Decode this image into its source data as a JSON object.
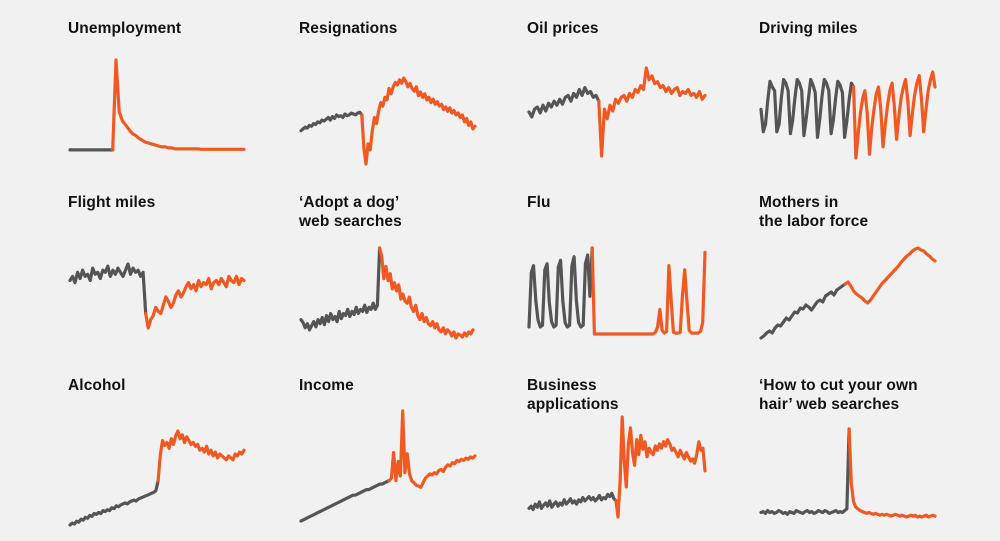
{
  "colors": {
    "before": "#555555",
    "after": "#f05a22",
    "background": "#f1f1f1"
  },
  "chart_data": [
    {
      "type": "line",
      "title": "Unemployment",
      "split_index": 13,
      "values": [
        3.9,
        3.9,
        3.9,
        3.9,
        3.9,
        3.9,
        3.9,
        3.9,
        3.9,
        3.9,
        3.9,
        3.9,
        3.9,
        3.8,
        98,
        44,
        34,
        30,
        25,
        21,
        19,
        16,
        14,
        12,
        11,
        10,
        9,
        8,
        7,
        7,
        6,
        6,
        5,
        5,
        5,
        5,
        5,
        5,
        5,
        5,
        4.5,
        4.5,
        4.5,
        4.5,
        4.5,
        4.5,
        4.5,
        4.5,
        4.5,
        4.5,
        4.5,
        4.5,
        4.5,
        4.5
      ]
    },
    {
      "type": "line",
      "title": "Resignations",
      "split_index": 29,
      "values": [
        40,
        42,
        44,
        43,
        46,
        45,
        48,
        47,
        50,
        49,
        52,
        51,
        53,
        55,
        52,
        56,
        54,
        58,
        56,
        57,
        55,
        59,
        57,
        58,
        60,
        59,
        58,
        60,
        61,
        58,
        20,
        2,
        25,
        18,
        40,
        55,
        48,
        62,
        72,
        68,
        78,
        75,
        88,
        82,
        90,
        95,
        92,
        98,
        94,
        100,
        96,
        90,
        94,
        88,
        85,
        90,
        80,
        84,
        78,
        82,
        75,
        78,
        72,
        76,
        70,
        73,
        68,
        70,
        64,
        67,
        62,
        66,
        60,
        63,
        58,
        60,
        55,
        58,
        50,
        54,
        46,
        50,
        42,
        45
      ]
    },
    {
      "type": "line",
      "title": "Oil prices",
      "split_index": 25,
      "values": [
        55,
        50,
        58,
        60,
        54,
        62,
        56,
        64,
        60,
        66,
        62,
        68,
        63,
        70,
        72,
        66,
        74,
        70,
        78,
        72,
        80,
        74,
        76,
        70,
        72,
        66,
        10,
        58,
        48,
        62,
        56,
        68,
        64,
        70,
        72,
        66,
        74,
        70,
        78,
        75,
        82,
        78,
        100,
        88,
        92,
        84,
        86,
        80,
        82,
        76,
        80,
        74,
        78,
        80,
        72,
        76,
        74,
        78,
        72,
        74,
        70,
        76,
        68,
        72
      ]
    },
    {
      "type": "line",
      "title": "Driving miles",
      "split_index": 41,
      "values": [
        60,
        48,
        52,
        65,
        75,
        72,
        70,
        48,
        52,
        66,
        76,
        74,
        70,
        47,
        54,
        66,
        76,
        74,
        70,
        46,
        55,
        66,
        76,
        73,
        69,
        45,
        55,
        67,
        76,
        74,
        70,
        47,
        54,
        66,
        75,
        73,
        69,
        45,
        54,
        65,
        74,
        72,
        34,
        47,
        58,
        66,
        70,
        58,
        36,
        50,
        60,
        68,
        72,
        60,
        40,
        52,
        62,
        70,
        74,
        62,
        44,
        56,
        66,
        72,
        76,
        64,
        46,
        58,
        68,
        74,
        78,
        66,
        48,
        60,
        70,
        76,
        80,
        72
      ]
    },
    {
      "type": "line",
      "title": "Flight miles",
      "split_index": 30,
      "values": [
        62,
        66,
        60,
        70,
        64,
        72,
        66,
        68,
        62,
        74,
        68,
        70,
        64,
        72,
        70,
        76,
        66,
        72,
        68,
        74,
        70,
        66,
        72,
        78,
        68,
        74,
        70,
        72,
        66,
        70,
        30,
        16,
        24,
        28,
        36,
        32,
        30,
        38,
        46,
        42,
        36,
        40,
        48,
        52,
        46,
        50,
        56,
        60,
        54,
        58,
        52,
        62,
        56,
        60,
        58,
        64,
        54,
        60,
        62,
        58,
        64,
        60,
        56,
        66,
        62,
        60,
        66,
        58,
        64,
        62
      ]
    },
    {
      "type": "line",
      "title": "‘Adopt a dog’\nweb searches",
      "split_index": 37,
      "values": [
        30,
        27,
        22,
        26,
        20,
        24,
        28,
        23,
        30,
        26,
        32,
        25,
        34,
        28,
        36,
        30,
        33,
        28,
        38,
        31,
        36,
        34,
        40,
        33,
        38,
        35,
        42,
        36,
        40,
        38,
        44,
        37,
        42,
        40,
        46,
        40,
        44,
        100,
        92,
        70,
        82,
        68,
        75,
        60,
        66,
        58,
        64,
        50,
        55,
        48,
        46,
        52,
        42,
        38,
        44,
        34,
        30,
        36,
        28,
        32,
        26,
        24,
        28,
        22,
        26,
        20,
        18,
        22,
        16,
        20,
        18,
        14,
        18,
        12,
        16,
        15,
        13,
        17,
        14,
        18,
        16,
        20
      ]
    },
    {
      "type": "line",
      "title": "Flu",
      "split_index": 28,
      "values": [
        10,
        72,
        80,
        40,
        18,
        10,
        12,
        75,
        82,
        38,
        16,
        10,
        12,
        78,
        86,
        40,
        15,
        10,
        12,
        80,
        90,
        40,
        15,
        10,
        12,
        82,
        92,
        45,
        100,
        2,
        2,
        2,
        2,
        2,
        2,
        2,
        2,
        2,
        2,
        2,
        2,
        2,
        2,
        2,
        2,
        2,
        2,
        2,
        2,
        2,
        2,
        2,
        2,
        2,
        2,
        2,
        4,
        10,
        30,
        6,
        3,
        5,
        80,
        40,
        4,
        3,
        3,
        4,
        45,
        75,
        40,
        6,
        3,
        3,
        3,
        3,
        5,
        15,
        95
      ]
    },
    {
      "type": "line",
      "title": "Mothers in\nthe labor force",
      "split_index": 30,
      "values": [
        10,
        12,
        15,
        17,
        15,
        20,
        23,
        22,
        26,
        30,
        28,
        32,
        36,
        35,
        40,
        39,
        43,
        41,
        38,
        42,
        46,
        48,
        46,
        52,
        54,
        56,
        53,
        58,
        60,
        62,
        64,
        66,
        62,
        57,
        54,
        52,
        50,
        47,
        45,
        48,
        52,
        56,
        60,
        64,
        67,
        70,
        73,
        76,
        79,
        82,
        86,
        89,
        92,
        94,
        97,
        99,
        100,
        98,
        97,
        94,
        92,
        89,
        87
      ]
    },
    {
      "type": "line",
      "title": "Alcohol",
      "split_index": 40,
      "values": [
        2,
        4,
        3,
        6,
        5,
        8,
        7,
        10,
        9,
        12,
        11,
        14,
        13,
        15,
        14,
        17,
        16,
        18,
        17,
        20,
        19,
        22,
        21,
        23,
        24,
        25,
        24,
        26,
        27,
        28,
        27,
        29,
        30,
        31,
        32,
        33,
        34,
        35,
        36,
        38,
        48,
        75,
        90,
        85,
        88,
        82,
        92,
        86,
        95,
        100,
        92,
        96,
        88,
        94,
        90,
        86,
        88,
        84,
        86,
        80,
        82,
        78,
        84,
        76,
        80,
        74,
        78,
        72,
        76,
        74,
        72,
        70,
        74,
        72,
        70,
        76,
        74,
        78,
        76,
        80
      ]
    },
    {
      "type": "line",
      "title": "Income",
      "split_index": 39,
      "values": [
        2,
        3,
        4,
        5,
        6,
        7,
        8,
        9,
        10,
        11,
        12,
        13,
        14,
        15,
        16,
        17,
        18,
        19,
        20,
        21,
        22,
        23,
        24,
        25,
        25,
        26,
        27,
        28,
        29,
        30,
        30,
        31,
        32,
        33,
        34,
        35,
        35,
        36,
        37,
        38,
        40,
        63,
        38,
        55,
        42,
        100,
        45,
        62,
        44,
        38,
        36,
        34,
        33,
        32,
        36,
        40,
        42,
        44,
        43,
        45,
        44,
        47,
        48,
        46,
        50,
        52,
        51,
        54,
        53,
        56,
        55,
        57,
        56,
        58,
        57,
        59,
        58,
        60
      ]
    },
    {
      "type": "line",
      "title": "Business\napplications",
      "split_index": 42,
      "values": [
        10,
        12,
        9,
        14,
        11,
        16,
        10,
        13,
        15,
        12,
        17,
        11,
        14,
        16,
        12,
        15,
        13,
        18,
        14,
        16,
        19,
        15,
        17,
        14,
        18,
        16,
        20,
        17,
        19,
        21,
        18,
        20,
        17,
        19,
        22,
        18,
        20,
        19,
        23,
        21,
        24,
        19,
        17,
        2,
        35,
        95,
        55,
        30,
        70,
        85,
        62,
        50,
        74,
        60,
        78,
        65,
        72,
        58,
        66,
        62,
        60,
        68,
        64,
        70,
        66,
        72,
        68,
        74,
        70,
        64,
        66,
        62,
        58,
        64,
        60,
        56,
        62,
        58,
        54,
        56,
        52,
        60,
        72,
        64,
        66,
        45
      ]
    },
    {
      "type": "line",
      "title": "‘How to cut your own\nhair’ web searches",
      "split_index": 40,
      "values": [
        8,
        9,
        7,
        10,
        8,
        9,
        7,
        8,
        10,
        9,
        7,
        8,
        6,
        9,
        8,
        7,
        10,
        9,
        8,
        7,
        9,
        10,
        8,
        9,
        7,
        8,
        10,
        9,
        8,
        10,
        9,
        7,
        8,
        9,
        10,
        8,
        9,
        8,
        10,
        12,
        100,
        40,
        20,
        14,
        12,
        10,
        9,
        8,
        7,
        8,
        7,
        6,
        7,
        6,
        5,
        6,
        5,
        6,
        5,
        4,
        5,
        6,
        5,
        4,
        5,
        4,
        3,
        4,
        5,
        4,
        5,
        3,
        4,
        3,
        4,
        5,
        3,
        4,
        5,
        4
      ]
    }
  ]
}
